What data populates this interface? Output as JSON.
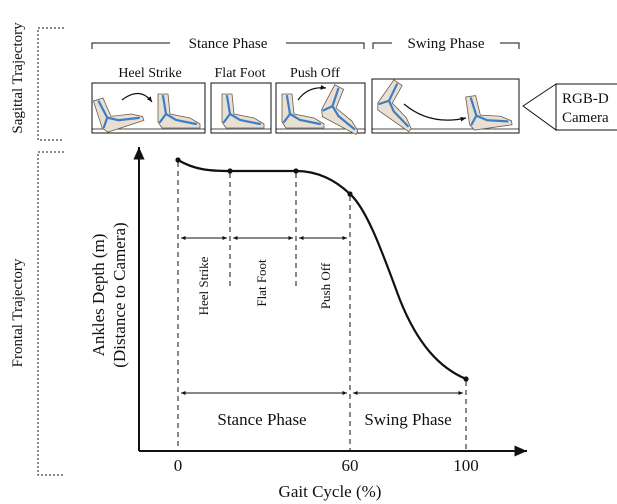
{
  "side_labels": {
    "sagittal": "Sagittal Trajectory",
    "frontal": "Frontal Trajectory"
  },
  "top_brackets": {
    "stance": "Stance Phase",
    "swing": "Swing Phase"
  },
  "sub_phases": {
    "heel_strike": "Heel Strike",
    "flat_foot": "Flat Foot",
    "push_off": "Push Off"
  },
  "camera": {
    "line1": "RGB-D",
    "line2": "Camera"
  },
  "chart_data": {
    "type": "line",
    "ylabel_line1": "Ankles Depth (m)",
    "ylabel_line2": "(Distance to Camera)",
    "xlabel": "Gait Cycle (%)",
    "x_ticks": [
      "0",
      "60",
      "100"
    ],
    "xlim": [
      0,
      100
    ],
    "key_points_x": [
      0,
      18,
      40,
      60,
      100
    ],
    "interval_labels": [
      "Heel Strike",
      "Flat Foot",
      "Push Off"
    ],
    "phase_labels": [
      "Stance Phase",
      "Swing Phase"
    ]
  },
  "colors": {
    "line": "#111111",
    "bone": "#3d7fc4",
    "skin": "#e9dfd2"
  }
}
